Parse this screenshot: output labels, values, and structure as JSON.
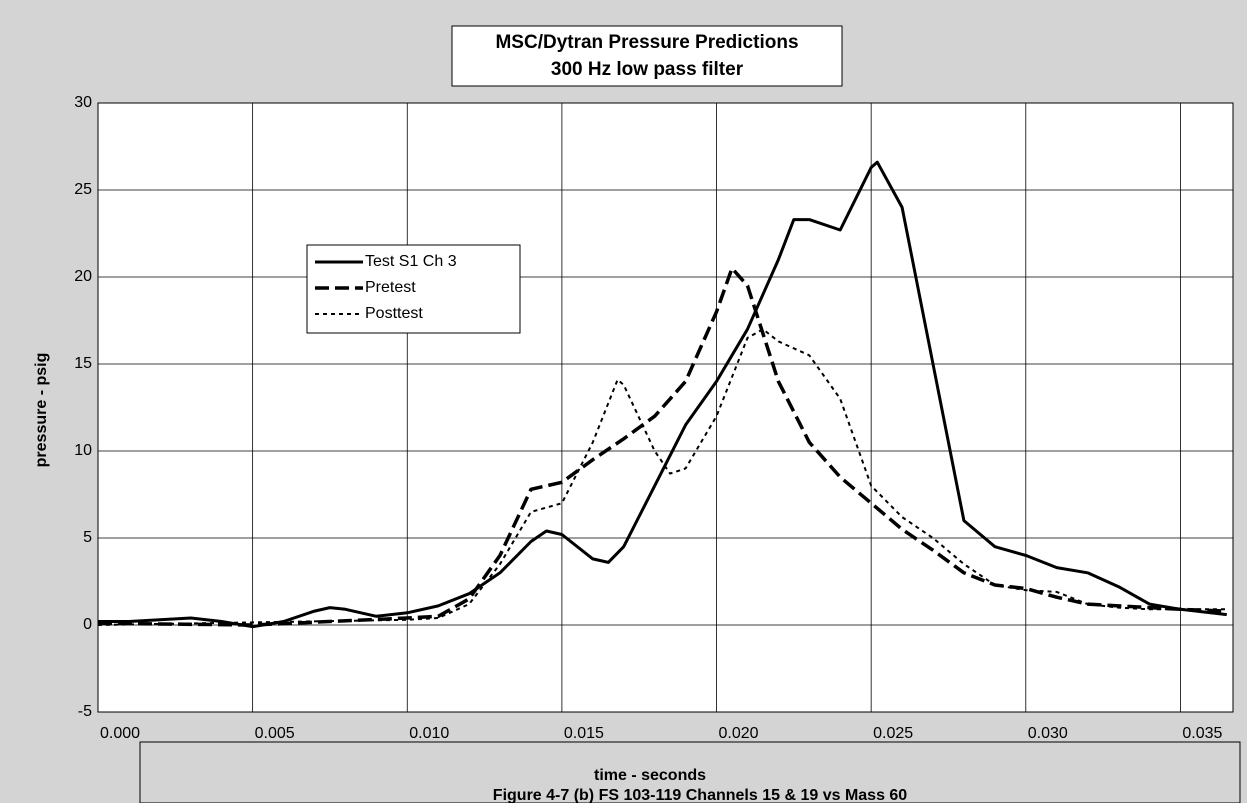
{
  "chart_data": {
    "type": "line",
    "title": "MSC/Dytran Pressure Predictions",
    "subtitle": "300 Hz low pass filter",
    "x_label": "time - seconds",
    "y_label": "pressure - psig",
    "caption": "Figure 4-7 (b)  FS 103-119 Channels 15 & 19 vs Mass 60",
    "xlim": [
      0,
      0.0367
    ],
    "ylim": [
      -5,
      30
    ],
    "xticks": [
      {
        "value": 0,
        "label": "0.000"
      },
      {
        "value": 0.005,
        "label": "0.005"
      },
      {
        "value": 0.01,
        "label": "0.010"
      },
      {
        "value": 0.015,
        "label": "0.015"
      },
      {
        "value": 0.02,
        "label": "0.020"
      },
      {
        "value": 0.025,
        "label": "0.025"
      },
      {
        "value": 0.03,
        "label": "0.030"
      },
      {
        "value": 0.035,
        "label": "0.035"
      }
    ],
    "yticks": [
      -5,
      0,
      5,
      10,
      15,
      20,
      25,
      30
    ],
    "grid": true,
    "legend": "upper left",
    "series": [
      {
        "name": "Test S1 Ch 3",
        "color": "#000000",
        "style": "solid",
        "x": [
          0,
          0.001,
          0.002,
          0.003,
          0.004,
          0.005,
          0.006,
          0.007,
          0.0075,
          0.008,
          0.009,
          0.01,
          0.011,
          0.012,
          0.013,
          0.014,
          0.0145,
          0.015,
          0.016,
          0.0165,
          0.017,
          0.018,
          0.019,
          0.02,
          0.021,
          0.022,
          0.0225,
          0.023,
          0.024,
          0.025,
          0.0252,
          0.026,
          0.027,
          0.028,
          0.029,
          0.03,
          0.031,
          0.032,
          0.033,
          0.034,
          0.035,
          0.0365
        ],
        "values": [
          0.2,
          0.2,
          0.3,
          0.4,
          0.2,
          -0.1,
          0.2,
          0.8,
          1.0,
          0.9,
          0.5,
          0.7,
          1.1,
          1.8,
          3.0,
          4.8,
          5.4,
          5.2,
          3.8,
          3.6,
          4.5,
          8,
          11.5,
          14,
          17,
          21,
          23.3,
          23.3,
          22.7,
          26.3,
          26.6,
          24,
          15,
          6,
          4.5,
          4,
          3.3,
          3,
          2.2,
          1.2,
          0.9,
          0.6
        ]
      },
      {
        "name": "Pretest",
        "color": "#000000",
        "style": "dashed",
        "x": [
          0,
          0.005,
          0.01,
          0.011,
          0.012,
          0.013,
          0.014,
          0.015,
          0.016,
          0.017,
          0.018,
          0.019,
          0.02,
          0.0205,
          0.021,
          0.022,
          0.023,
          0.024,
          0.025,
          0.026,
          0.027,
          0.028,
          0.029,
          0.03,
          0.031,
          0.032,
          0.033,
          0.034,
          0.035,
          0.0365
        ],
        "values": [
          0.1,
          0.0,
          0.4,
          0.5,
          1.5,
          4,
          7.8,
          8.2,
          9.5,
          10.7,
          12,
          14,
          18,
          20.5,
          19.5,
          14,
          10.5,
          8.5,
          7,
          5.5,
          4.3,
          3,
          2.3,
          2.1,
          1.6,
          1.2,
          1.1,
          1.0,
          0.9,
          0.8
        ]
      },
      {
        "name": "Posttest",
        "color": "#000000",
        "style": "dotted",
        "x": [
          0,
          0.01,
          0.011,
          0.012,
          0.013,
          0.014,
          0.015,
          0.016,
          0.0168,
          0.017,
          0.018,
          0.0185,
          0.019,
          0.02,
          0.021,
          0.0215,
          0.022,
          0.023,
          0.024,
          0.025,
          0.026,
          0.027,
          0.028,
          0.029,
          0.03,
          0.031,
          0.032,
          0.033,
          0.034,
          0.035,
          0.0365
        ],
        "values": [
          0,
          0.3,
          0.4,
          1.2,
          3.5,
          6.5,
          7,
          10.5,
          14.1,
          13.8,
          10,
          8.7,
          9,
          12,
          16.5,
          17,
          16.3,
          15.5,
          13,
          8,
          6.2,
          5,
          3.5,
          2.3,
          2.0,
          1.9,
          1.2,
          1.0,
          0.9,
          0.9,
          0.9
        ]
      }
    ]
  }
}
